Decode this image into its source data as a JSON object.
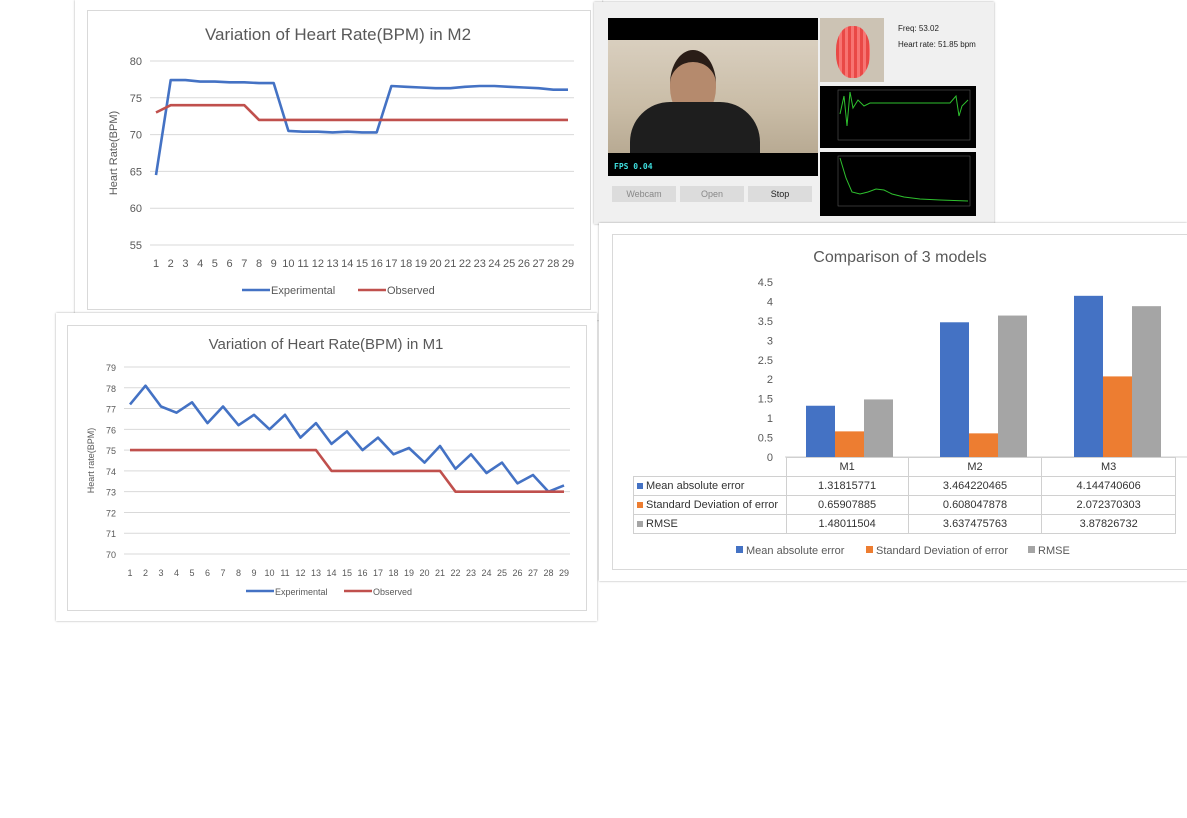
{
  "m2_chart": {
    "title": "Variation of Heart Rate(BPM) in M2",
    "ylabel": "Heart Rate(BPM)"
  },
  "m1_chart": {
    "title": "Variation of Heart Rate(BPM) in M1",
    "ylabel": "Heart rate(BPM)"
  },
  "cmp_chart": {
    "title": "Comparison of 3 models"
  },
  "webcam_app": {
    "freq_text": "Freq: 53.02",
    "heart_rate_text": "Heart rate: 51.85 bpm",
    "fps_text": "FPS 0.04",
    "buttons": [
      "Webcam",
      "Open",
      "Stop"
    ]
  },
  "chart_data": [
    {
      "type": "line",
      "title": "Variation of Heart Rate(BPM) in M2",
      "xlabel": "",
      "ylabel": "Heart Rate(BPM)",
      "x": [
        1,
        2,
        3,
        4,
        5,
        6,
        7,
        8,
        9,
        10,
        11,
        12,
        13,
        14,
        15,
        16,
        17,
        18,
        19,
        20,
        21,
        22,
        23,
        24,
        25,
        26,
        27,
        28,
        29
      ],
      "ylim": [
        55,
        80
      ],
      "yticks": [
        55,
        60,
        65,
        70,
        75,
        80
      ],
      "grid": true,
      "legend": "bottom",
      "series": [
        {
          "name": "Experimental",
          "color": "#4472c4",
          "values": [
            64.5,
            77.4,
            77.4,
            77.2,
            77.2,
            77.1,
            77.1,
            77.0,
            77.0,
            70.5,
            70.4,
            70.4,
            70.3,
            70.4,
            70.3,
            70.3,
            76.6,
            76.5,
            76.4,
            76.3,
            76.3,
            76.5,
            76.6,
            76.6,
            76.5,
            76.4,
            76.3,
            76.1,
            76.1
          ]
        },
        {
          "name": "Observed",
          "color": "#c0504d",
          "values": [
            73,
            74,
            74,
            74,
            74,
            74,
            74,
            72,
            72,
            72,
            72,
            72,
            72,
            72,
            72,
            72,
            72,
            72,
            72,
            72,
            72,
            72,
            72,
            72,
            72,
            72,
            72,
            72,
            72
          ]
        }
      ]
    },
    {
      "type": "line",
      "title": "Variation of Heart Rate(BPM) in M1",
      "xlabel": "",
      "ylabel": "Heart rate(BPM)",
      "x": [
        1,
        2,
        3,
        4,
        5,
        6,
        7,
        8,
        9,
        10,
        11,
        12,
        13,
        14,
        15,
        16,
        17,
        18,
        19,
        20,
        21,
        22,
        23,
        24,
        25,
        26,
        27,
        28,
        29
      ],
      "ylim": [
        70,
        79
      ],
      "yticks": [
        70,
        71,
        72,
        73,
        74,
        75,
        76,
        77,
        78,
        79
      ],
      "grid": true,
      "legend": "bottom",
      "series": [
        {
          "name": "Experimental",
          "color": "#4472c4",
          "values": [
            77.2,
            78.1,
            77.1,
            76.8,
            77.3,
            76.3,
            77.1,
            76.2,
            76.7,
            76.0,
            76.7,
            75.6,
            76.3,
            75.3,
            75.9,
            75.0,
            75.6,
            74.8,
            75.1,
            74.4,
            75.2,
            74.1,
            74.8,
            73.9,
            74.4,
            73.4,
            73.8,
            73.0,
            73.3
          ]
        },
        {
          "name": "Observed",
          "color": "#c0504d",
          "values": [
            75,
            75,
            75,
            75,
            75,
            75,
            75,
            75,
            75,
            75,
            75,
            75,
            75,
            74,
            74,
            74,
            74,
            74,
            74,
            74,
            74,
            73,
            73,
            73,
            73,
            73,
            73,
            73,
            73
          ]
        }
      ]
    },
    {
      "type": "bar",
      "title": "Comparison of 3 models",
      "categories": [
        "M1",
        "M2",
        "M3"
      ],
      "ylim": [
        0,
        4.5
      ],
      "yticks": [
        "0",
        "0.5",
        "1",
        "1.5",
        "2",
        "2.5",
        "3",
        "3.5",
        "4",
        "4.5"
      ],
      "grid": false,
      "legend": "bottom",
      "series": [
        {
          "name": "Mean absolute error",
          "color": "#4472c4",
          "values": [
            1.31815771,
            3.464220465,
            4.144740606
          ],
          "labels": [
            "1.31815771",
            "3.464220465",
            "4.144740606"
          ]
        },
        {
          "name": "Standard Deviation of error",
          "color": "#ed7d31",
          "values": [
            0.65907885,
            0.608047878,
            2.072370303
          ],
          "labels": [
            "0.65907885",
            "0.608047878",
            "2.072370303"
          ]
        },
        {
          "name": "RMSE",
          "color": "#a5a5a5",
          "values": [
            1.48011504,
            3.637475763,
            3.87826732
          ],
          "labels": [
            "1.48011504",
            "3.637475763",
            "3.87826732"
          ]
        }
      ]
    }
  ]
}
